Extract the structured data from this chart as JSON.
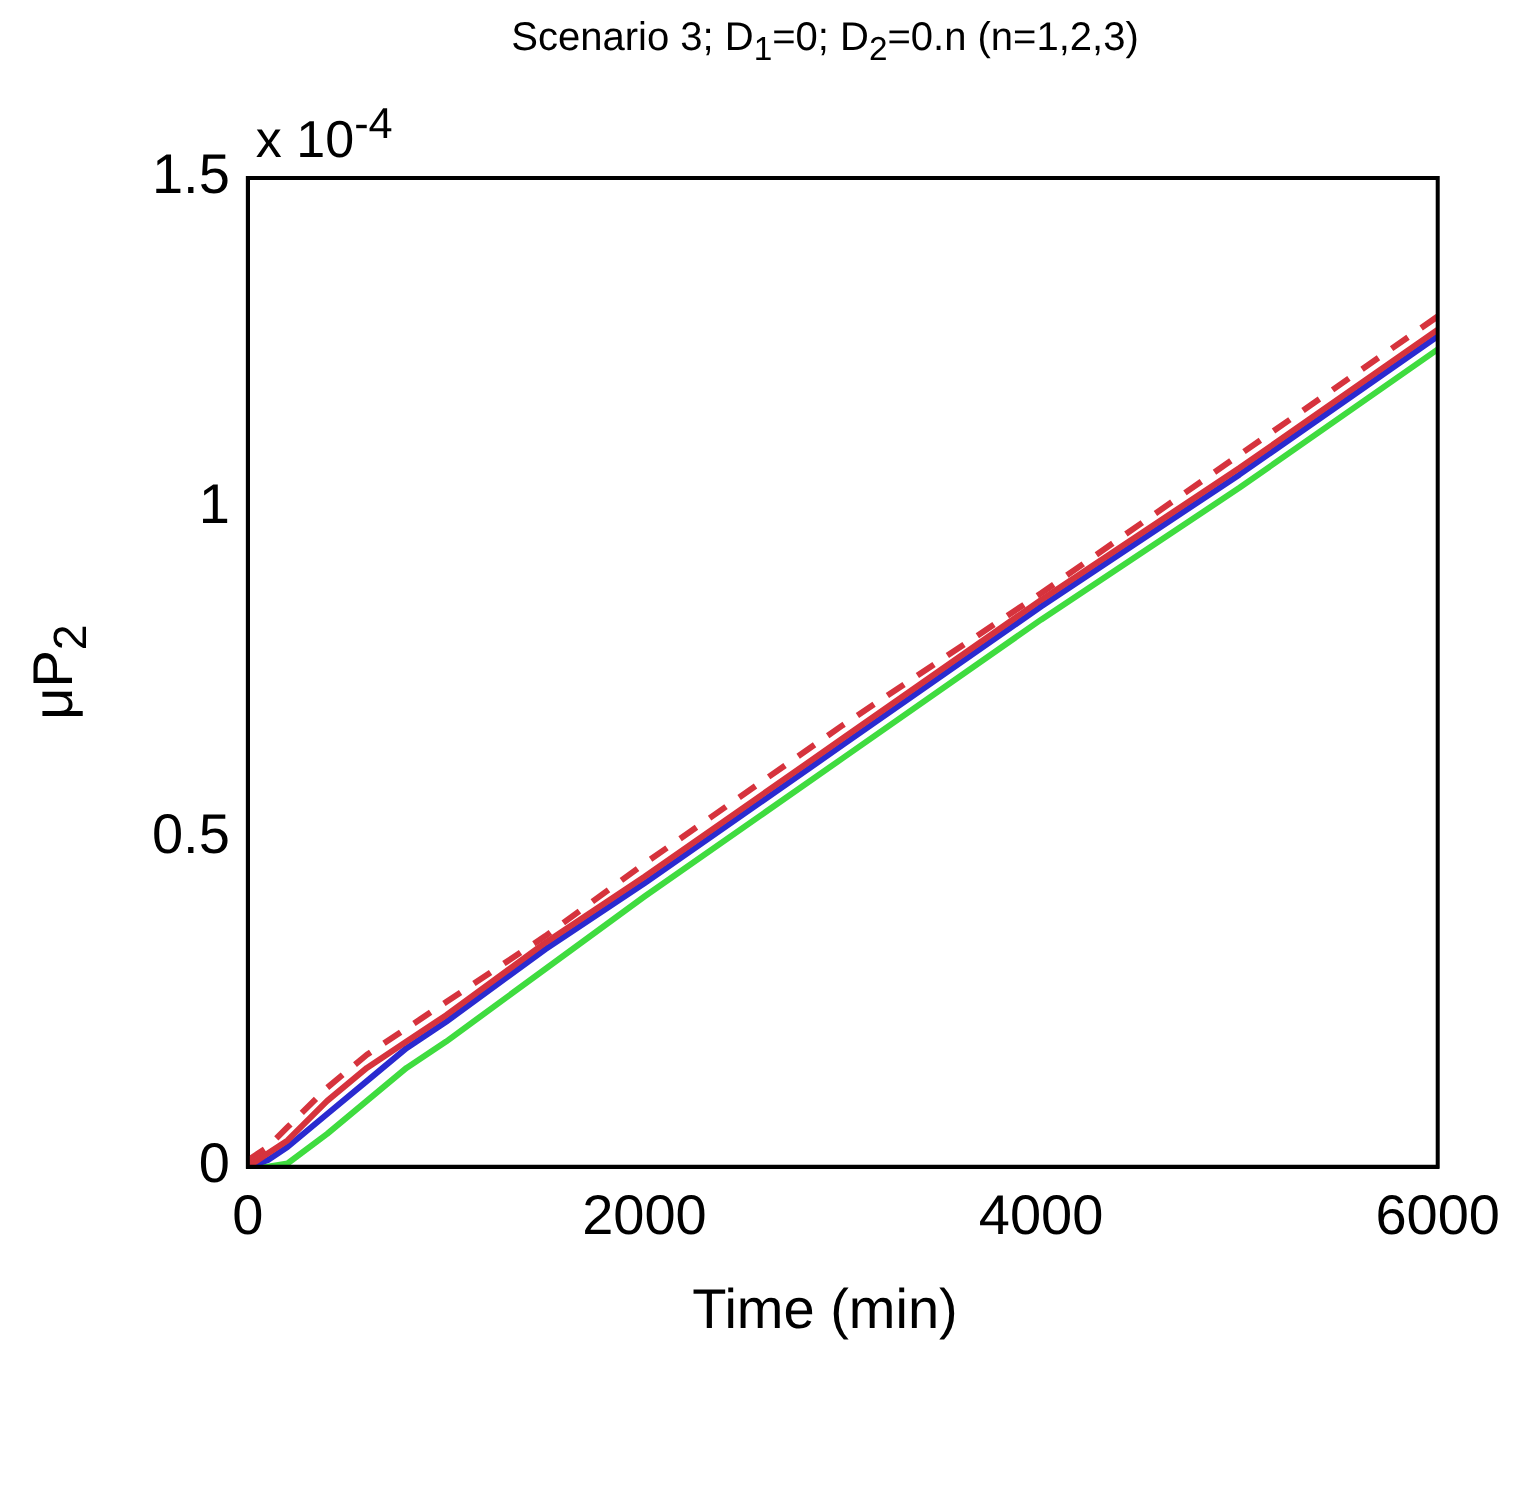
{
  "chart_data": {
    "type": "line",
    "title": "Scenario 3; D$_{1}$=0; D$_{2}$=0.n (n=1,2,3)",
    "xlabel": "Time (min)",
    "ylabel": "μP$_{2}$",
    "annotations": [
      "x 10$^{-4}$"
    ],
    "x": [
      0,
      100,
      200,
      400,
      600,
      800,
      1000,
      1500,
      2000,
      3000,
      4000,
      5000,
      6000
    ],
    "series": [
      {
        "color": "#d6333d",
        "line_style": "dashed",
        "values": [
          0.01,
          0.03,
          0.06,
          0.12,
          0.17,
          0.21,
          0.25,
          0.35,
          0.46,
          0.67,
          0.87,
          1.08,
          1.29
        ]
      },
      {
        "color": "#d6333d",
        "line_style": "solid",
        "values": [
          0,
          0.02,
          0.04,
          0.1,
          0.15,
          0.19,
          0.23,
          0.34,
          0.44,
          0.65,
          0.86,
          1.06,
          1.27
        ]
      },
      {
        "color": "#2a2ad0",
        "line_style": "solid",
        "values": [
          0,
          0.01,
          0.03,
          0.08,
          0.13,
          0.18,
          0.22,
          0.33,
          0.43,
          0.64,
          0.85,
          1.05,
          1.26
        ]
      },
      {
        "color": "#3fdc3f",
        "line_style": "solid",
        "values": [
          0,
          0,
          0.005,
          0.05,
          0.1,
          0.15,
          0.19,
          0.3,
          0.41,
          0.62,
          0.83,
          1.03,
          1.24
        ]
      }
    ],
    "xlim": [
      0,
      6000
    ],
    "xticks": [
      0,
      2000,
      4000,
      6000
    ],
    "ylim": [
      0,
      1.5
    ],
    "yticks": [
      0,
      0.5,
      1,
      1.5
    ],
    "grid": false,
    "legend": false,
    "marker": "none"
  }
}
